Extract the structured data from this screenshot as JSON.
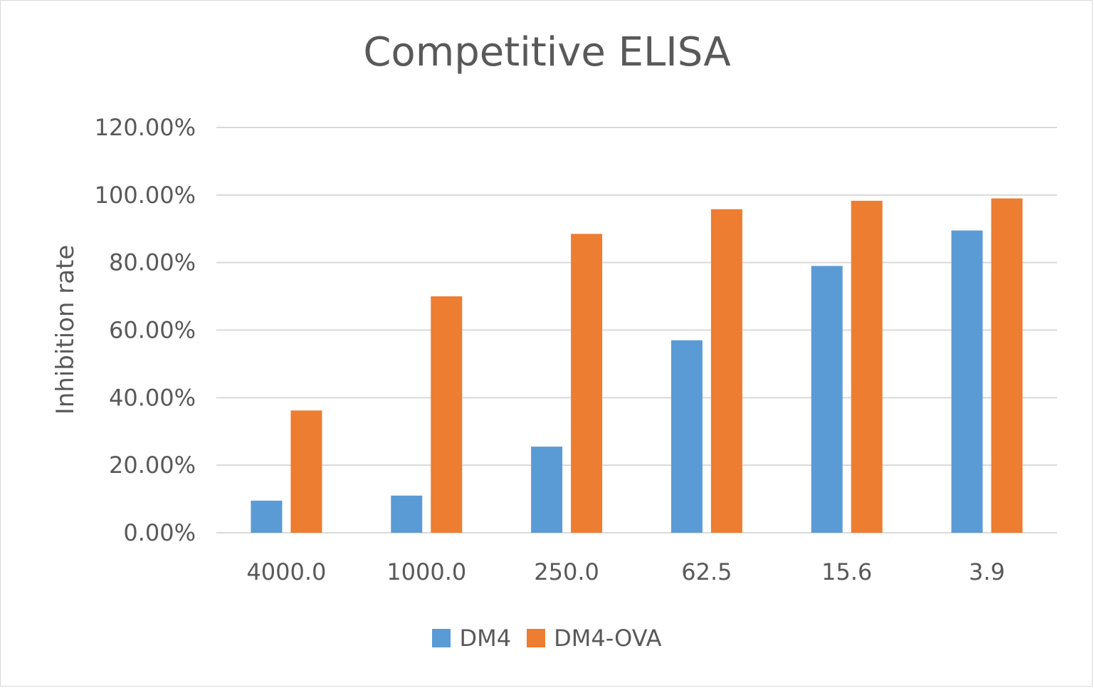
{
  "chart_data": {
    "type": "bar",
    "title": "Competitive ELISA",
    "xlabel": "",
    "ylabel": "Inhibition rate",
    "categories": [
      "4000.0",
      "1000.0",
      "250.0",
      "62.5",
      "15.6",
      "3.9"
    ],
    "ylim": [
      0,
      1.2
    ],
    "yticks": [
      0,
      0.2,
      0.4,
      0.6,
      0.8,
      1.0,
      1.2
    ],
    "ytick_labels": [
      "0.00%",
      "20.00%",
      "40.00%",
      "60.00%",
      "80.00%",
      "100.00%",
      "120.00%"
    ],
    "grid": true,
    "legend_position": "bottom",
    "series": [
      {
        "name": "DM4",
        "color": "#5b9bd5",
        "values": [
          0.095,
          0.11,
          0.255,
          0.57,
          0.79,
          0.895
        ]
      },
      {
        "name": "DM4-OVA",
        "color": "#ed7d31",
        "values": [
          0.362,
          0.7,
          0.885,
          0.958,
          0.983,
          0.99
        ]
      }
    ]
  }
}
